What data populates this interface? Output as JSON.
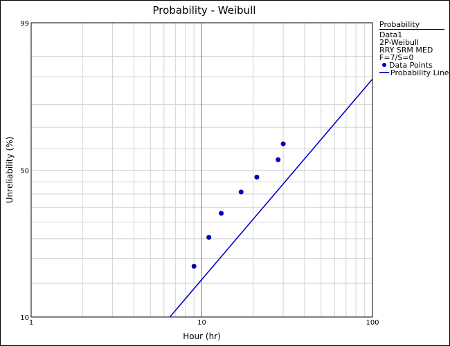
{
  "chart_data": {
    "type": "scatter",
    "title": "Probability - Weibull",
    "xlabel": "Hour (hr)",
    "ylabel": "Unreliability (%)",
    "x_scale": "log",
    "y_scale": "weibull",
    "xlim": [
      1,
      100
    ],
    "ylim": [
      10,
      99
    ],
    "x_tick_labels": [
      "1",
      "10",
      "100"
    ],
    "y_tick_labels": [
      "99",
      "50",
      "10"
    ],
    "grid": true,
    "legend_placement": "right",
    "series": [
      {
        "name": "Data Points",
        "kind": "points",
        "x": [
          9.0,
          11.0,
          13.0,
          17.0,
          21.0,
          28.0,
          30.0
        ],
        "y": [
          18.3,
          25.4,
          32.9,
          40.8,
          47.0,
          54.8,
          62.2
        ],
        "color": "#0000cc"
      },
      {
        "name": "Probability Line",
        "kind": "line",
        "x": [
          6.5,
          100
        ],
        "y": [
          10,
          89.3
        ],
        "color": "#0000cc"
      }
    ]
  },
  "legend": {
    "header": "Probability",
    "lines": [
      "Data1",
      "2P-Weibull",
      "RRY SRM  MED",
      "F=7/S=0"
    ],
    "points_label": "Data Points",
    "line_label": "Probability Line"
  },
  "colors": {
    "series": "#0000cc",
    "grid": "#d3d3d3",
    "major_grid": "#808080",
    "axis": "#000000"
  }
}
